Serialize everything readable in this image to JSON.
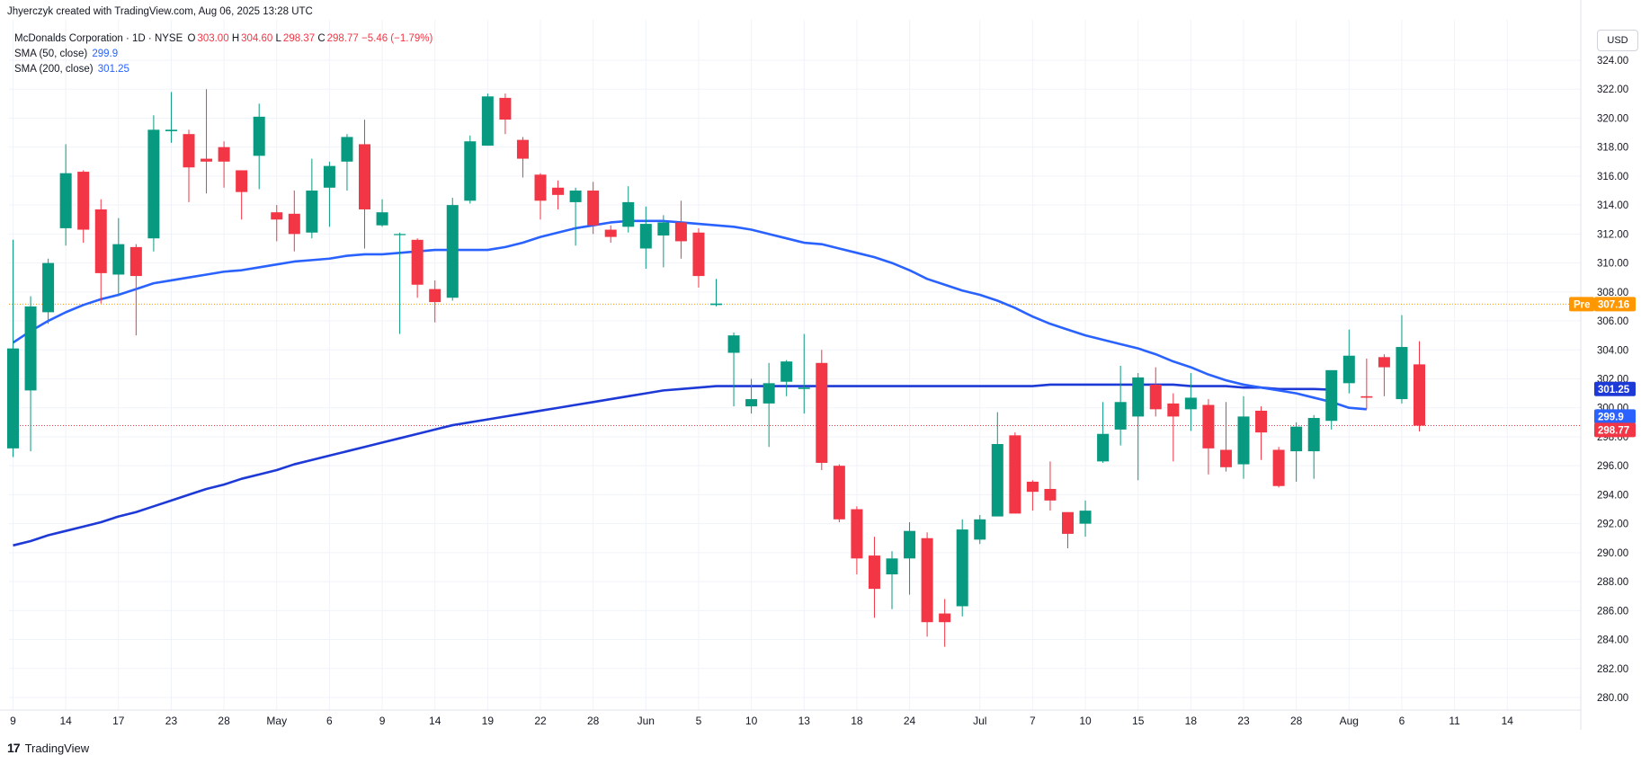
{
  "header": {
    "attribution": "Jhyerczyk created with TradingView.com, Aug 06, 2025 13:28 UTC"
  },
  "legend": {
    "title": "McDonalds Corporation · 1D · NYSE",
    "o_label": "O",
    "o_value": "303.00",
    "h_label": "H",
    "h_value": "304.60",
    "l_label": "L",
    "l_value": "298.37",
    "c_label": "C",
    "c_value": "298.77",
    "change": "−5.46 (−1.79%)",
    "sma50_label": "SMA (50, close)",
    "sma50_value": "299.9",
    "sma200_label": "SMA (200, close)",
    "sma200_value": "301.25"
  },
  "currency": "USD",
  "footer": {
    "logo": "17",
    "brand": "TradingView"
  },
  "colors": {
    "up": "#089981",
    "down": "#f23645",
    "sma50": "#2962ff",
    "sma200": "#1e3ad6",
    "pre": "#ff9800"
  },
  "chart_data": {
    "type": "candlestick",
    "y_ticks": [
      "324.00",
      "322.00",
      "320.00",
      "318.00",
      "316.00",
      "314.00",
      "312.00",
      "310.00",
      "308.00",
      "306.00",
      "304.00",
      "302.00",
      "300.00",
      "298.00",
      "296.00",
      "294.00",
      "292.00",
      "290.00",
      "288.00",
      "286.00",
      "284.00",
      "282.00",
      "280.00"
    ],
    "ylim": [
      279.5,
      325.5
    ],
    "x_ticks": [
      "9",
      "14",
      "17",
      "23",
      "28",
      "May",
      "6",
      "9",
      "14",
      "19",
      "22",
      "28",
      "Jun",
      "5",
      "10",
      "13",
      "18",
      "24",
      "Jul",
      "7",
      "10",
      "15",
      "18",
      "23",
      "28",
      "Aug",
      "6",
      "11",
      "14"
    ],
    "x_tick_index": [
      0,
      3,
      6,
      9,
      12,
      15,
      18,
      21,
      24,
      27,
      30,
      33,
      36,
      39,
      42,
      45,
      48,
      51,
      55,
      58,
      61,
      64,
      67,
      70,
      73,
      76,
      79,
      82,
      85
    ],
    "candles": [
      {
        "o": 297.2,
        "h": 311.6,
        "l": 296.6,
        "c": 304.1
      },
      {
        "o": 301.2,
        "h": 307.7,
        "l": 297.0,
        "c": 307.0
      },
      {
        "o": 306.6,
        "h": 310.3,
        "l": 305.8,
        "c": 310.0
      },
      {
        "o": 312.4,
        "h": 318.2,
        "l": 311.2,
        "c": 316.2
      },
      {
        "o": 316.3,
        "h": 316.4,
        "l": 311.4,
        "c": 312.3
      },
      {
        "o": 313.7,
        "h": 314.4,
        "l": 307.2,
        "c": 309.3
      },
      {
        "o": 309.2,
        "h": 313.1,
        "l": 307.7,
        "c": 311.3
      },
      {
        "o": 311.1,
        "h": 311.3,
        "l": 305.0,
        "c": 309.1
      },
      {
        "o": 311.7,
        "h": 320.2,
        "l": 310.8,
        "c": 319.2
      },
      {
        "o": 319.1,
        "h": 321.8,
        "l": 318.3,
        "c": 319.2
      },
      {
        "o": 318.9,
        "h": 319.2,
        "l": 314.2,
        "c": 316.6
      },
      {
        "o": 317.2,
        "h": 322.0,
        "l": 314.8,
        "c": 317.0
      },
      {
        "o": 318.0,
        "h": 318.4,
        "l": 315.2,
        "c": 317.0
      },
      {
        "o": 316.4,
        "h": 316.4,
        "l": 313.0,
        "c": 314.9
      },
      {
        "o": 317.4,
        "h": 321.0,
        "l": 315.1,
        "c": 320.1
      },
      {
        "o": 313.5,
        "h": 314.0,
        "l": 311.5,
        "c": 313.0
      },
      {
        "o": 313.4,
        "h": 315.0,
        "l": 310.8,
        "c": 312.0
      },
      {
        "o": 312.1,
        "h": 317.2,
        "l": 311.7,
        "c": 315.0
      },
      {
        "o": 315.2,
        "h": 317.0,
        "l": 312.5,
        "c": 316.7
      },
      {
        "o": 317.0,
        "h": 318.9,
        "l": 315.0,
        "c": 318.7
      },
      {
        "o": 318.2,
        "h": 319.9,
        "l": 311.0,
        "c": 313.7
      },
      {
        "o": 312.6,
        "h": 314.4,
        "l": 312.5,
        "c": 313.5
      },
      {
        "o": 312.0,
        "h": 312.1,
        "l": 305.1,
        "c": 312.0
      },
      {
        "o": 311.6,
        "h": 311.7,
        "l": 307.6,
        "c": 308.5
      },
      {
        "o": 308.2,
        "h": 308.8,
        "l": 305.9,
        "c": 307.3
      },
      {
        "o": 307.6,
        "h": 314.5,
        "l": 307.4,
        "c": 314.0
      },
      {
        "o": 314.3,
        "h": 318.8,
        "l": 314.1,
        "c": 318.4
      },
      {
        "o": 318.1,
        "h": 321.7,
        "l": 318.1,
        "c": 321.5
      },
      {
        "o": 321.4,
        "h": 321.7,
        "l": 318.9,
        "c": 319.9
      },
      {
        "o": 318.5,
        "h": 318.7,
        "l": 315.9,
        "c": 317.2
      },
      {
        "o": 316.1,
        "h": 316.2,
        "l": 313.0,
        "c": 314.3
      },
      {
        "o": 315.2,
        "h": 315.7,
        "l": 313.7,
        "c": 314.7
      },
      {
        "o": 314.2,
        "h": 315.2,
        "l": 311.2,
        "c": 315.0
      },
      {
        "o": 315.0,
        "h": 315.6,
        "l": 312.0,
        "c": 312.6
      },
      {
        "o": 312.3,
        "h": 312.6,
        "l": 311.4,
        "c": 311.8
      },
      {
        "o": 312.5,
        "h": 315.3,
        "l": 312.1,
        "c": 314.2
      },
      {
        "o": 311.0,
        "h": 313.9,
        "l": 309.6,
        "c": 312.7
      },
      {
        "o": 311.9,
        "h": 313.3,
        "l": 309.7,
        "c": 312.8
      },
      {
        "o": 312.8,
        "h": 314.3,
        "l": 310.3,
        "c": 311.5
      },
      {
        "o": 312.1,
        "h": 312.4,
        "l": 308.3,
        "c": 309.1
      },
      {
        "o": 307.1,
        "h": 308.9,
        "l": 307.0,
        "c": 307.2
      },
      {
        "o": 303.8,
        "h": 305.2,
        "l": 300.1,
        "c": 305.0
      },
      {
        "o": 300.1,
        "h": 302.0,
        "l": 299.6,
        "c": 300.6
      },
      {
        "o": 300.3,
        "h": 303.1,
        "l": 297.3,
        "c": 301.7
      },
      {
        "o": 301.8,
        "h": 303.3,
        "l": 300.8,
        "c": 303.2
      },
      {
        "o": 301.3,
        "h": 305.1,
        "l": 299.6,
        "c": 301.4
      },
      {
        "o": 303.1,
        "h": 304.0,
        "l": 295.7,
        "c": 296.2
      },
      {
        "o": 296.0,
        "h": 296.1,
        "l": 292.1,
        "c": 292.3
      },
      {
        "o": 293.0,
        "h": 293.2,
        "l": 288.5,
        "c": 289.6
      },
      {
        "o": 289.8,
        "h": 291.1,
        "l": 285.5,
        "c": 287.5
      },
      {
        "o": 288.5,
        "h": 290.1,
        "l": 286.1,
        "c": 289.6
      },
      {
        "o": 289.6,
        "h": 292.1,
        "l": 287.1,
        "c": 291.5
      },
      {
        "o": 291.0,
        "h": 291.4,
        "l": 284.2,
        "c": 285.2
      },
      {
        "o": 285.8,
        "h": 286.8,
        "l": 283.5,
        "c": 285.2
      },
      {
        "o": 286.3,
        "h": 292.3,
        "l": 285.6,
        "c": 291.6
      },
      {
        "o": 290.9,
        "h": 292.6,
        "l": 290.6,
        "c": 292.3
      },
      {
        "o": 292.5,
        "h": 299.7,
        "l": 292.5,
        "c": 297.5
      },
      {
        "o": 298.1,
        "h": 298.3,
        "l": 292.8,
        "c": 292.7
      },
      {
        "o": 294.9,
        "h": 295.0,
        "l": 292.9,
        "c": 294.2
      },
      {
        "o": 294.4,
        "h": 296.3,
        "l": 292.9,
        "c": 293.6
      },
      {
        "o": 292.8,
        "h": 292.8,
        "l": 290.3,
        "c": 291.3
      },
      {
        "o": 292.0,
        "h": 293.6,
        "l": 291.1,
        "c": 292.9
      },
      {
        "o": 296.3,
        "h": 300.4,
        "l": 296.2,
        "c": 298.2
      },
      {
        "o": 298.5,
        "h": 302.9,
        "l": 297.4,
        "c": 300.4
      },
      {
        "o": 299.4,
        "h": 302.4,
        "l": 295.0,
        "c": 302.1
      },
      {
        "o": 301.6,
        "h": 302.8,
        "l": 299.4,
        "c": 299.9
      },
      {
        "o": 300.3,
        "h": 301.0,
        "l": 296.3,
        "c": 299.4
      },
      {
        "o": 299.9,
        "h": 302.4,
        "l": 298.4,
        "c": 300.7
      },
      {
        "o": 300.2,
        "h": 300.6,
        "l": 295.4,
        "c": 297.2
      },
      {
        "o": 297.1,
        "h": 300.4,
        "l": 295.6,
        "c": 295.9
      },
      {
        "o": 296.1,
        "h": 300.8,
        "l": 295.1,
        "c": 299.4
      },
      {
        "o": 299.8,
        "h": 300.1,
        "l": 296.4,
        "c": 298.3
      },
      {
        "o": 297.1,
        "h": 297.3,
        "l": 294.5,
        "c": 294.6
      },
      {
        "o": 297.0,
        "h": 299.0,
        "l": 294.9,
        "c": 298.7
      },
      {
        "o": 297.0,
        "h": 299.5,
        "l": 295.1,
        "c": 299.3
      },
      {
        "o": 299.1,
        "h": 302.5,
        "l": 298.5,
        "c": 302.6
      },
      {
        "o": 301.7,
        "h": 305.4,
        "l": 301.0,
        "c": 303.6
      },
      {
        "o": 300.8,
        "h": 303.4,
        "l": 299.9,
        "c": 300.7
      },
      {
        "o": 303.5,
        "h": 303.7,
        "l": 300.8,
        "c": 302.8
      },
      {
        "o": 300.6,
        "h": 306.4,
        "l": 300.3,
        "c": 304.2
      },
      {
        "o": 303.0,
        "h": 304.6,
        "l": 298.37,
        "c": 298.77
      }
    ],
    "sma50": [
      304.5,
      305.3,
      306.0,
      306.6,
      307.1,
      307.5,
      307.8,
      308.2,
      308.6,
      308.8,
      309.0,
      309.2,
      309.4,
      309.5,
      309.7,
      309.9,
      310.1,
      310.2,
      310.3,
      310.5,
      310.6,
      310.6,
      310.7,
      310.8,
      310.9,
      310.9,
      310.9,
      310.9,
      311.1,
      311.4,
      311.8,
      312.1,
      312.4,
      312.6,
      312.8,
      312.9,
      312.9,
      312.9,
      312.8,
      312.7,
      312.6,
      312.5,
      312.3,
      312.0,
      311.7,
      311.4,
      311.3,
      311.0,
      310.7,
      310.4,
      310.0,
      309.5,
      308.9,
      308.5,
      308.1,
      307.8,
      307.4,
      306.9,
      306.3,
      305.8,
      305.4,
      305.0,
      304.7,
      304.4,
      304.1,
      303.7,
      303.2,
      302.8,
      302.3,
      301.9,
      301.6,
      301.4,
      301.2,
      301.0,
      300.7,
      300.4,
      300.0,
      299.9
    ],
    "sma200": [
      290.5,
      290.8,
      291.2,
      291.5,
      291.8,
      292.1,
      292.5,
      292.8,
      293.2,
      293.6,
      294.0,
      294.4,
      294.7,
      295.1,
      295.4,
      295.7,
      296.1,
      296.4,
      296.7,
      297.0,
      297.3,
      297.6,
      297.9,
      298.2,
      298.5,
      298.8,
      299.0,
      299.2,
      299.4,
      299.6,
      299.8,
      300.0,
      300.2,
      300.4,
      300.6,
      300.8,
      301.0,
      301.2,
      301.3,
      301.4,
      301.5,
      301.5,
      301.5,
      301.5,
      301.5,
      301.5,
      301.5,
      301.5,
      301.5,
      301.5,
      301.5,
      301.5,
      301.5,
      301.5,
      301.5,
      301.5,
      301.5,
      301.5,
      301.5,
      301.6,
      301.6,
      301.6,
      301.6,
      301.6,
      301.6,
      301.6,
      301.6,
      301.5,
      301.5,
      301.5,
      301.4,
      301.4,
      301.3,
      301.3,
      301.3,
      301.25
    ],
    "last_price": 298.77,
    "last_label": "298.77",
    "sma50_label": "299.9",
    "sma200_label": "301.25",
    "pre_market": {
      "label": "Pre",
      "value": 307.16,
      "value_label": "307.16"
    }
  }
}
